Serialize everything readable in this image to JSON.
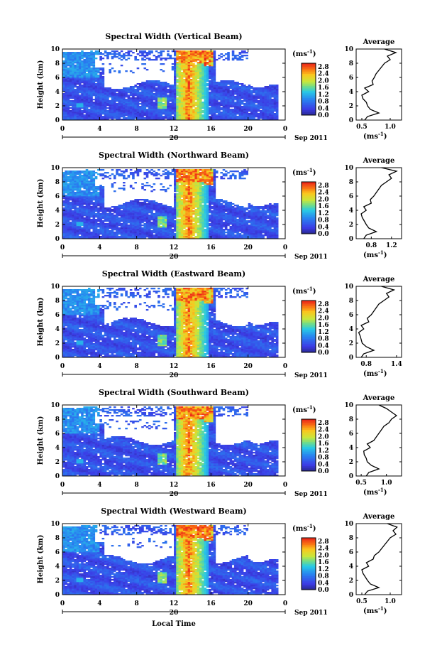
{
  "chart_data": [
    {
      "type": "heatmap",
      "title": "Spectral Width (Vertical Beam)",
      "ylabel": "Height (km)",
      "xlim": [
        0,
        24
      ],
      "ylim": [
        0,
        10
      ],
      "x_ticks": [
        "0",
        "4",
        "8",
        "12",
        "16",
        "20",
        "0"
      ],
      "y_ticks": [
        "0",
        "2",
        "4",
        "6",
        "8",
        "10"
      ],
      "date_label": "20",
      "date_suffix": "Sep 2011",
      "colorbar": {
        "unit": "(ms-1)",
        "ticks": [
          "0.0",
          "0.4",
          "0.8",
          "1.2",
          "1.6",
          "2.0",
          "2.4",
          "2.8"
        ],
        "range": [
          0,
          3.0
        ]
      },
      "profile": {
        "title": "Average",
        "xlabel": "(ms-1)",
        "x_ticks": [
          "0.5",
          "1.0"
        ],
        "xlim": [
          0.4,
          1.2
        ],
        "heights": [
          0,
          0.5,
          1,
          1.5,
          2,
          2.5,
          3,
          3.5,
          4,
          4.5,
          5,
          5.5,
          6,
          6.5,
          7,
          7.5,
          8,
          8.5,
          9,
          9.5,
          10
        ],
        "values": [
          0.55,
          0.6,
          0.8,
          0.65,
          0.6,
          0.58,
          0.52,
          0.5,
          0.62,
          0.55,
          0.7,
          0.68,
          0.72,
          0.75,
          0.8,
          0.85,
          0.9,
          1.0,
          0.95,
          1.1,
          0.9
        ]
      }
    },
    {
      "type": "heatmap",
      "title": "Spectral Width (Northward Beam)",
      "ylabel": "Height (km)",
      "xlim": [
        0,
        24
      ],
      "ylim": [
        0,
        10
      ],
      "x_ticks": [
        "0",
        "4",
        "8",
        "12",
        "16",
        "20",
        "0"
      ],
      "y_ticks": [
        "0",
        "2",
        "4",
        "6",
        "8",
        "10"
      ],
      "date_label": "20",
      "date_suffix": "Sep 2011",
      "colorbar": {
        "unit": "(ms-1)",
        "ticks": [
          "0.0",
          "0.4",
          "0.8",
          "1.2",
          "1.6",
          "2.0",
          "2.4",
          "2.8"
        ],
        "range": [
          0,
          3.0
        ]
      },
      "profile": {
        "title": "Average",
        "xlabel": "(ms-1)",
        "x_ticks": [
          "0.8",
          "1.2"
        ],
        "xlim": [
          0.5,
          1.4
        ],
        "heights": [
          0,
          0.5,
          1,
          1.5,
          2,
          2.5,
          3,
          3.5,
          4,
          4.5,
          5,
          5.5,
          6,
          6.5,
          7,
          7.5,
          8,
          8.5,
          9,
          9.5,
          10
        ],
        "values": [
          0.65,
          0.7,
          0.9,
          0.75,
          0.7,
          0.66,
          0.62,
          0.6,
          0.7,
          0.65,
          0.8,
          0.78,
          0.85,
          0.9,
          0.95,
          1.0,
          1.1,
          1.2,
          1.15,
          1.3,
          1.0
        ]
      }
    },
    {
      "type": "heatmap",
      "title": "Spectral Width (Eastward Beam)",
      "ylabel": "Height (km)",
      "xlim": [
        0,
        24
      ],
      "ylim": [
        0,
        10
      ],
      "x_ticks": [
        "0",
        "4",
        "8",
        "12",
        "16",
        "20",
        "0"
      ],
      "y_ticks": [
        "0",
        "2",
        "4",
        "6",
        "8",
        "10"
      ],
      "date_label": "20",
      "date_suffix": "Sep 2011",
      "colorbar": {
        "unit": "(ms-1)",
        "ticks": [
          "0.0",
          "0.4",
          "0.8",
          "1.2",
          "1.6",
          "2.0",
          "2.4",
          "2.8"
        ],
        "range": [
          0,
          3.0
        ]
      },
      "profile": {
        "title": "Average",
        "xlabel": "(ms-1)",
        "x_ticks": [
          "0.8",
          "1.4"
        ],
        "xlim": [
          0.6,
          1.5
        ],
        "heights": [
          0,
          0.5,
          1,
          1.5,
          2,
          2.5,
          3,
          3.5,
          4,
          4.5,
          5,
          5.5,
          6,
          6.5,
          7,
          7.5,
          8,
          8.5,
          9,
          9.5,
          10
        ],
        "values": [
          0.7,
          0.75,
          0.95,
          0.8,
          0.72,
          0.7,
          0.68,
          0.65,
          0.75,
          0.7,
          0.85,
          0.82,
          0.9,
          0.95,
          1.0,
          1.05,
          1.15,
          1.25,
          1.2,
          1.35,
          1.1
        ]
      }
    },
    {
      "type": "heatmap",
      "title": "Spectral Width (Southward Beam)",
      "ylabel": "Height (km)",
      "xlim": [
        0,
        24
      ],
      "ylim": [
        0,
        10
      ],
      "x_ticks": [
        "0",
        "4",
        "8",
        "12",
        "16",
        "20",
        "0"
      ],
      "y_ticks": [
        "0",
        "2",
        "4",
        "6",
        "8",
        "10"
      ],
      "date_label": "20",
      "date_suffix": "Sep 2011",
      "colorbar": {
        "unit": "(ms-1)",
        "ticks": [
          "0.0",
          "0.4",
          "0.8",
          "1.2",
          "1.6",
          "2.0",
          "2.4",
          "2.8"
        ],
        "range": [
          0,
          3.0
        ]
      },
      "profile": {
        "title": "Average",
        "xlabel": "(ms-1)",
        "x_ticks": [
          "0.5",
          "1.0"
        ],
        "xlim": [
          0.4,
          1.3
        ],
        "heights": [
          0,
          0.5,
          1,
          1.5,
          2,
          2.5,
          3,
          3.5,
          4,
          4.5,
          5,
          5.5,
          6,
          6.5,
          7,
          7.5,
          8,
          8.5,
          9,
          9.5,
          10
        ],
        "values": [
          0.6,
          0.65,
          0.85,
          0.7,
          0.62,
          0.6,
          0.56,
          0.55,
          0.68,
          0.62,
          0.75,
          0.8,
          0.85,
          0.9,
          0.95,
          1.05,
          1.1,
          1.2,
          1.1,
          1.0,
          0.85
        ]
      }
    },
    {
      "type": "heatmap",
      "title": "Spectral Width (Westward Beam)",
      "ylabel": "Height (km)",
      "xlabel": "Local Time",
      "xlim": [
        0,
        24
      ],
      "ylim": [
        0,
        10
      ],
      "x_ticks": [
        "0",
        "4",
        "8",
        "12",
        "16",
        "20",
        "0"
      ],
      "y_ticks": [
        "0",
        "2",
        "4",
        "6",
        "8",
        "10"
      ],
      "date_label": "20",
      "date_suffix": "Sep 2011",
      "colorbar": {
        "unit": "(ms-1)",
        "ticks": [
          "0.0",
          "0.4",
          "0.8",
          "1.2",
          "1.6",
          "2.0",
          "2.4",
          "2.8"
        ],
        "range": [
          0,
          3.0
        ]
      },
      "profile": {
        "title": "Average",
        "xlabel": "(ms-1)",
        "x_ticks": [
          "0.5",
          "1.0"
        ],
        "xlim": [
          0.4,
          1.2
        ],
        "heights": [
          0,
          0.5,
          1,
          1.5,
          2,
          2.5,
          3,
          3.5,
          4,
          4.5,
          5,
          5.5,
          6,
          6.5,
          7,
          7.5,
          8,
          8.5,
          9,
          9.5,
          10
        ],
        "values": [
          0.55,
          0.6,
          0.8,
          0.65,
          0.6,
          0.56,
          0.52,
          0.5,
          0.62,
          0.58,
          0.7,
          0.72,
          0.8,
          0.85,
          0.9,
          0.95,
          1.0,
          1.1,
          1.05,
          1.12,
          0.95
        ]
      }
    }
  ]
}
